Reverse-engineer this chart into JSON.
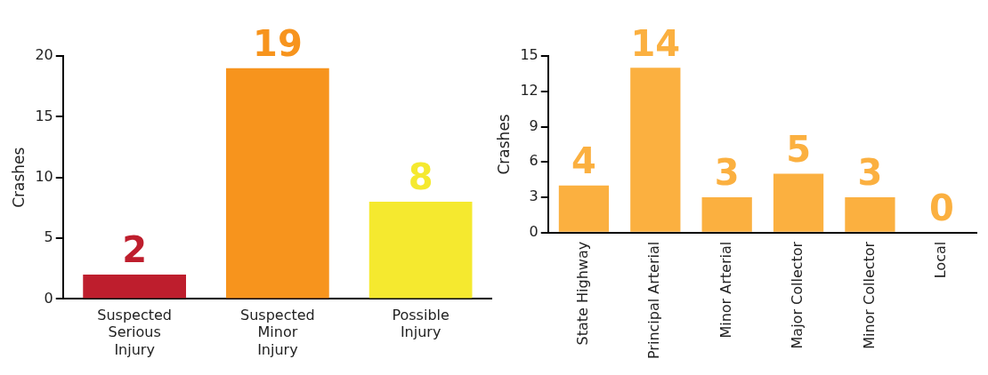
{
  "chart_data": [
    {
      "type": "bar",
      "ylabel": "Crashes",
      "categories": [
        "Suspected Serious Injury",
        "Suspected Minor Injury",
        "Possible Injury"
      ],
      "values": [
        2,
        19,
        8
      ],
      "colors": [
        "#be1e2d",
        "#f7941d",
        "#f5e92f"
      ],
      "ylim": [
        0,
        20
      ],
      "yticks": [
        0,
        5,
        10,
        15,
        20
      ],
      "data_labels": true,
      "grid": false,
      "legend": false
    },
    {
      "type": "bar",
      "ylabel": "Crashes",
      "categories": [
        "State Highway",
        "Principal Arterial",
        "Minor Arterial",
        "Major Collector",
        "Minor Collector",
        "Local"
      ],
      "values": [
        4,
        14,
        3,
        5,
        3,
        0
      ],
      "colors": [
        "#fbb040",
        "#fbb040",
        "#fbb040",
        "#fbb040",
        "#fbb040",
        "#fbb040"
      ],
      "ylim": [
        0,
        15
      ],
      "yticks": [
        0,
        3,
        6,
        9,
        12,
        15
      ],
      "data_labels": true,
      "grid": false,
      "legend": false
    }
  ]
}
